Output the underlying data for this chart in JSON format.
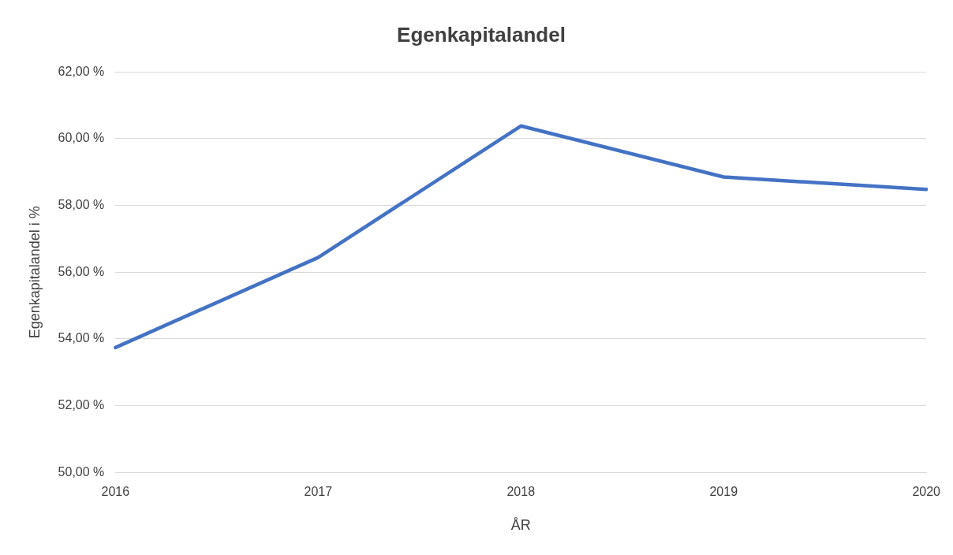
{
  "chart_data": {
    "type": "line",
    "title": "Egenkapitalandel",
    "xlabel": "ÅR",
    "ylabel": "Egenkapitalandel i %",
    "categories": [
      "2016",
      "2017",
      "2018",
      "2019",
      "2020"
    ],
    "series": [
      {
        "color": "#4472c4",
        "values": [
          53.74,
          56.44,
          60.38,
          58.85,
          58.48
        ]
      }
    ],
    "ylim": [
      50,
      62
    ],
    "yticks": [
      {
        "value": 50,
        "label": "50,00 %"
      },
      {
        "value": 52,
        "label": "52,00 %"
      },
      {
        "value": 54,
        "label": "54,00 %"
      },
      {
        "value": 56,
        "label": "56,00 %"
      },
      {
        "value": 58,
        "label": "58,00 %"
      },
      {
        "value": 60,
        "label": "60,00 %"
      },
      {
        "value": 62,
        "label": "62,00 %"
      }
    ],
    "grid": "y",
    "legend": false,
    "marker": "none",
    "line_style": "solid"
  }
}
